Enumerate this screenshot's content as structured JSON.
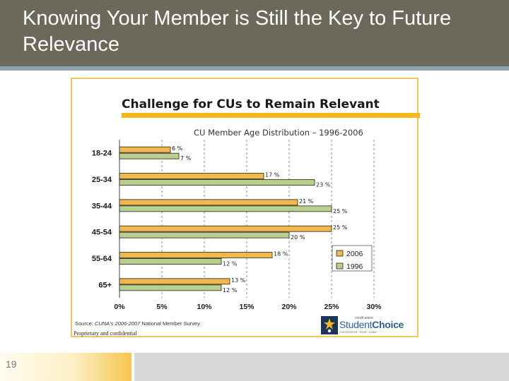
{
  "slide": {
    "title": "Knowing Your Member is Still the Key to Future Relevance",
    "page_number": "19",
    "source_prefix": "Source: ",
    "source_italic": "CUNA's 2006-2007",
    "source_suffix": " National Member Survey",
    "proprietary": "Proprietary and confidential",
    "logo": {
      "small_text": "credit union",
      "brand_part1": "Student",
      "brand_part2": "Choice",
      "tagline": "convenience · trust · value"
    }
  },
  "chart_data": {
    "type": "bar",
    "orientation": "horizontal",
    "title": "Challenge for CUs to Remain Relevant",
    "subtitle": "CU Member Age Distribution – 1996-2006",
    "categories": [
      "18-24",
      "25-34",
      "35-44",
      "45-54",
      "55-64",
      "65+"
    ],
    "series": [
      {
        "name": "2006",
        "color": "#f2b84b",
        "values": [
          6,
          17,
          21,
          25,
          18,
          13
        ]
      },
      {
        "name": "1996",
        "color": "#b9cf8c",
        "values": [
          7,
          23,
          25,
          20,
          12,
          12
        ]
      }
    ],
    "value_labels": {
      "2006": [
        "6 %",
        "17 %",
        "21 %",
        "25 %",
        "18 %",
        "13 %"
      ],
      "1996": [
        "7 %",
        "23 %",
        "25 %",
        "20 %",
        "12 %",
        "12 %"
      ]
    },
    "xlim": [
      0,
      30
    ],
    "xticks": [
      "0%",
      "5%",
      "10%",
      "15%",
      "20%",
      "25%",
      "30%"
    ],
    "xtick_values": [
      0,
      5,
      10,
      15,
      20,
      25,
      30
    ],
    "grid": "vertical dashed",
    "legend_position": "right"
  }
}
